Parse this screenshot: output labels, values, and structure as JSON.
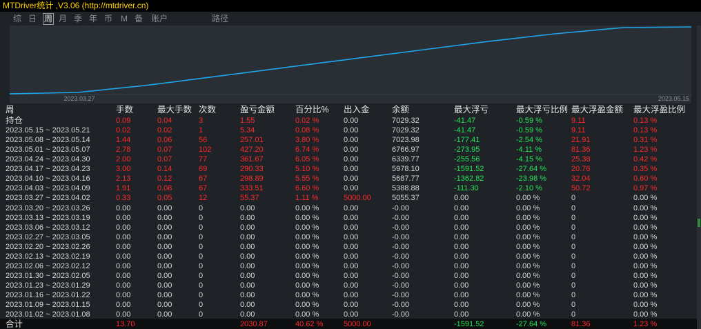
{
  "title": "MTDriver统计 ,V3.06 (http://mtdriver.cn)",
  "tabs": [
    "综",
    "日",
    "周",
    "月",
    "季",
    "年",
    "币",
    "M",
    "备",
    "账户",
    "路径"
  ],
  "active_tab": 2,
  "chart": {
    "x_labels": [
      "2023.03.27",
      "2023.05.15"
    ],
    "values": [
      5000,
      5042,
      5255,
      5519,
      5787,
      6052,
      6318,
      6584,
      6820,
      7008,
      7029
    ]
  },
  "table": {
    "header": [
      "周",
      "手数",
      "最大手数",
      "次数",
      "盈亏金额",
      "百分比%",
      "出入金",
      "余额",
      "最大浮亏",
      "最大浮亏比例",
      "最大浮盈金额",
      "最大浮盈比例"
    ],
    "rows": [
      [
        "持仓",
        "0.09",
        "0.04",
        "3",
        "1.55",
        "0.02 %",
        "0.00",
        "7029.32",
        "-41.47",
        "-0.59 %",
        "9.11",
        "0.13 %"
      ],
      [
        "2023.05.15 ~ 2023.05.21",
        "0.02",
        "0.02",
        "1",
        "5.34",
        "0.08 %",
        "0.00",
        "7029.32",
        "-41.47",
        "-0.59 %",
        "9.11",
        "0.13 %"
      ],
      [
        "2023.05.08 ~ 2023.05.14",
        "1.44",
        "0.06",
        "56",
        "257.01",
        "3.80 %",
        "0.00",
        "7023.98",
        "-177.41",
        "-2.54 %",
        "21.91",
        "0.31 %"
      ],
      [
        "2023.05.01 ~ 2023.05.07",
        "2.78",
        "0.07",
        "102",
        "427.20",
        "6.74 %",
        "0.00",
        "6766.97",
        "-273.95",
        "-4.11 %",
        "81.36",
        "1.23 %"
      ],
      [
        "2023.04.24 ~ 2023.04.30",
        "2.00",
        "0.07",
        "77",
        "361.67",
        "6.05 %",
        "0.00",
        "6339.77",
        "-255.56",
        "-4.15 %",
        "25.38",
        "0.42 %"
      ],
      [
        "2023.04.17 ~ 2023.04.23",
        "3.00",
        "0.14",
        "69",
        "290.33",
        "5.10 %",
        "0.00",
        "5978.10",
        "-1591.52",
        "-27.64 %",
        "20.76",
        "0.35 %"
      ],
      [
        "2023.04.10 ~ 2023.04.16",
        "2.13",
        "0.12",
        "67",
        "298.89",
        "5.55 %",
        "0.00",
        "5687.77",
        "-1362.82",
        "-23.98 %",
        "32.04",
        "0.60 %"
      ],
      [
        "2023.04.03 ~ 2023.04.09",
        "1.91",
        "0.08",
        "67",
        "333.51",
        "6.60 %",
        "0.00",
        "5388.88",
        "-111.30",
        "-2.10 %",
        "50.72",
        "0.97 %"
      ],
      [
        "2023.03.27 ~ 2023.04.02",
        "0.33",
        "0.05",
        "12",
        "55.37",
        "1.11 %",
        "5000.00",
        "5055.37",
        "0.00",
        "0.00 %",
        "0",
        "0.00 %"
      ],
      [
        "2023.03.20 ~ 2023.03.26",
        "0.00",
        "0.00",
        "0",
        "0.00",
        "0.00 %",
        "0.00",
        "-0.00",
        "0.00",
        "0.00 %",
        "0",
        "0.00 %"
      ],
      [
        "2023.03.13 ~ 2023.03.19",
        "0.00",
        "0.00",
        "0",
        "0.00",
        "0.00 %",
        "0.00",
        "-0.00",
        "0.00",
        "0.00 %",
        "0",
        "0.00 %"
      ],
      [
        "2023.03.06 ~ 2023.03.12",
        "0.00",
        "0.00",
        "0",
        "0.00",
        "0.00 %",
        "0.00",
        "-0.00",
        "0.00",
        "0.00 %",
        "0",
        "0.00 %"
      ],
      [
        "2023.02.27 ~ 2023.03.05",
        "0.00",
        "0.00",
        "0",
        "0.00",
        "0.00 %",
        "0.00",
        "-0.00",
        "0.00",
        "0.00 %",
        "0",
        "0.00 %"
      ],
      [
        "2023.02.20 ~ 2023.02.26",
        "0.00",
        "0.00",
        "0",
        "0.00",
        "0.00 %",
        "0.00",
        "-0.00",
        "0.00",
        "0.00 %",
        "0",
        "0.00 %"
      ],
      [
        "2023.02.13 ~ 2023.02.19",
        "0.00",
        "0.00",
        "0",
        "0.00",
        "0.00 %",
        "0.00",
        "-0.00",
        "0.00",
        "0.00 %",
        "0",
        "0.00 %"
      ],
      [
        "2023.02.06 ~ 2023.02.12",
        "0.00",
        "0.00",
        "0",
        "0.00",
        "0.00 %",
        "0.00",
        "-0.00",
        "0.00",
        "0.00 %",
        "0",
        "0.00 %"
      ],
      [
        "2023.01.30 ~ 2023.02.05",
        "0.00",
        "0.00",
        "0",
        "0.00",
        "0.00 %",
        "0.00",
        "-0.00",
        "0.00",
        "0.00 %",
        "0",
        "0.00 %"
      ],
      [
        "2023.01.23 ~ 2023.01.29",
        "0.00",
        "0.00",
        "0",
        "0.00",
        "0.00 %",
        "0.00",
        "-0.00",
        "0.00",
        "0.00 %",
        "0",
        "0.00 %"
      ],
      [
        "2023.01.16 ~ 2023.01.22",
        "0.00",
        "0.00",
        "0",
        "0.00",
        "0.00 %",
        "0.00",
        "-0.00",
        "0.00",
        "0.00 %",
        "0",
        "0.00 %"
      ],
      [
        "2023.01.09 ~ 2023.01.15",
        "0.00",
        "0.00",
        "0",
        "0.00",
        "0.00 %",
        "0.00",
        "-0.00",
        "0.00",
        "0.00 %",
        "0",
        "0.00 %"
      ],
      [
        "2023.01.02 ~ 2023.01.08",
        "0.00",
        "0.00",
        "0",
        "0.00",
        "0.00 %",
        "0.00",
        "-0.00",
        "0.00",
        "0.00 %",
        "0",
        "0.00 %"
      ]
    ],
    "total": [
      "合计",
      "13.70",
      null,
      null,
      "2030.87",
      "40.62 %",
      "5000.00",
      null,
      "-1591.52",
      "-27.64 %",
      "81.36",
      "1.23 %"
    ]
  }
}
